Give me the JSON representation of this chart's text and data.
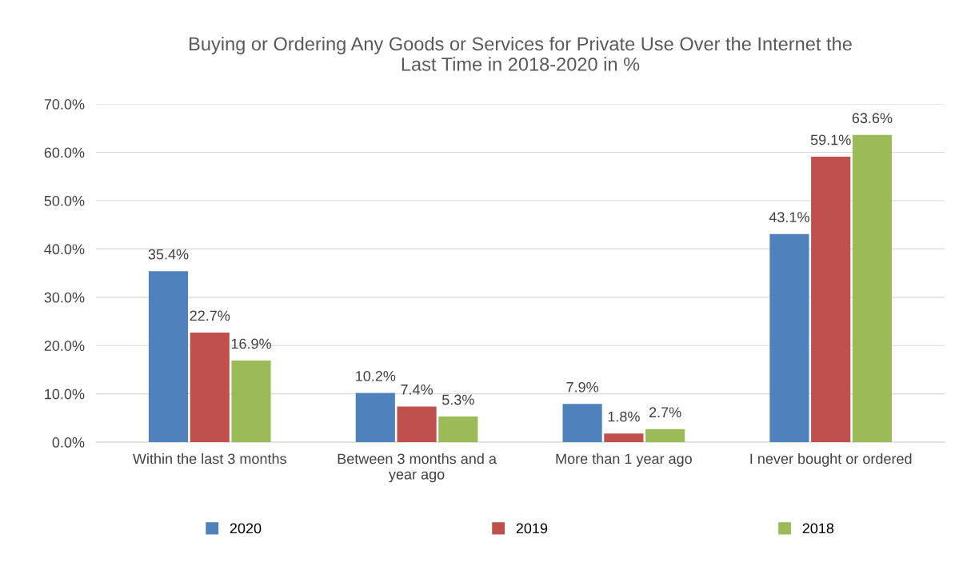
{
  "chart_data": {
    "type": "bar",
    "title": "Buying or Ordering Any Goods or Services for Private Use Over the Internet the\nLast Time in 2018-2020 in %",
    "categories": [
      "Within the last 3 months",
      "Between 3 months and a\nyear ago",
      "More than 1 year ago",
      "I never bought or ordered"
    ],
    "series": [
      {
        "name": "2020",
        "color": "#4f81bd",
        "values": [
          35.4,
          10.2,
          7.9,
          43.1
        ],
        "value_labels": [
          "35.4%",
          "10.2%",
          "7.9%",
          "43.1%"
        ]
      },
      {
        "name": "2019",
        "color": "#c0504d",
        "values": [
          22.7,
          7.4,
          1.8,
          59.1
        ],
        "value_labels": [
          "22.7%",
          "7.4%",
          "1.8%",
          "59.1%"
        ]
      },
      {
        "name": "2018",
        "color": "#9bbb59",
        "values": [
          16.9,
          5.3,
          2.7,
          63.6
        ],
        "value_labels": [
          "16.9%",
          "5.3%",
          "2.7%",
          "63.6%"
        ]
      }
    ],
    "ylim": [
      0,
      70
    ],
    "yticks": [
      {
        "value": 0,
        "label": "0.0%"
      },
      {
        "value": 10,
        "label": "10.0%"
      },
      {
        "value": 20,
        "label": "20.0%"
      },
      {
        "value": 30,
        "label": "30.0%"
      },
      {
        "value": 40,
        "label": "40.0%"
      },
      {
        "value": 50,
        "label": "50.0%"
      },
      {
        "value": 60,
        "label": "60.0%"
      },
      {
        "value": 70,
        "label": "70.0%"
      }
    ],
    "grid": "y",
    "legend": "bottom"
  }
}
